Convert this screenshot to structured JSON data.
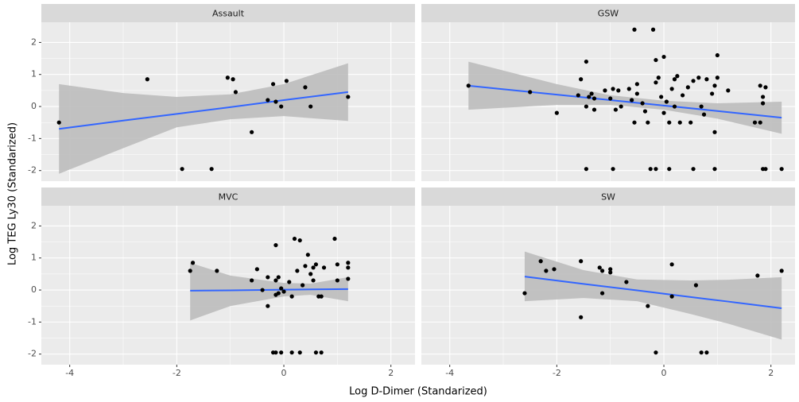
{
  "xlabel": "Log D-Dimer (Standarized)",
  "ylabel": "Log TEG Ly30 (Standarized)",
  "chart_data": [
    {
      "type": "scatter",
      "title": "Assault",
      "xlim": [
        -4.53,
        2.45
      ],
      "ylim": [
        -2.33,
        2.63
      ],
      "xticks": [
        -4,
        -2,
        0,
        2
      ],
      "yticks": [
        -2,
        -1,
        0,
        1,
        2
      ],
      "xminor": [
        -3,
        -1,
        1
      ],
      "yminor": [
        -1.5,
        -0.5,
        0.5,
        1.5
      ],
      "color": "#000000",
      "line_color": "#3366ff",
      "band_color": "#bdbdbd",
      "x": [
        -4.2,
        -2.55,
        -1.9,
        -1.35,
        -1.05,
        -0.95,
        -0.9,
        -0.6,
        -0.3,
        -0.2,
        -0.15,
        -0.05,
        0.05,
        0.4,
        0.5,
        1.2
      ],
      "y": [
        -0.5,
        0.85,
        -1.95,
        -1.95,
        0.9,
        0.85,
        0.45,
        -0.8,
        0.2,
        0.7,
        0.15,
        0,
        0.8,
        0.6,
        0,
        0.3
      ],
      "fit": {
        "x": [
          -4.2,
          -3,
          -2,
          -1,
          0,
          1.2
        ],
        "y": [
          -0.7,
          -0.44,
          -0.23,
          -0.02,
          0.2,
          0.45
        ],
        "lower": [
          -2.1,
          -1.3,
          -0.65,
          -0.4,
          -0.3,
          -0.45
        ],
        "upper": [
          0.7,
          0.42,
          0.3,
          0.38,
          0.7,
          1.35
        ]
      }
    },
    {
      "type": "scatter",
      "title": "GSW",
      "xlim": [
        -4.53,
        2.45
      ],
      "ylim": [
        -2.33,
        2.63
      ],
      "xticks": [
        -4,
        -2,
        0,
        2
      ],
      "yticks": [
        -2,
        -1,
        0,
        1,
        2
      ],
      "xminor": [
        -3,
        -1,
        1
      ],
      "yminor": [
        -1.5,
        -0.5,
        0.5,
        1.5
      ],
      "color": "#000000",
      "line_color": "#3366ff",
      "band_color": "#bdbdbd",
      "x": [
        -3.65,
        -2.5,
        -2.0,
        -1.45,
        -1.55,
        -1.6,
        -1.4,
        -1.35,
        -1.3,
        -1.45,
        -1.3,
        -1.45,
        -1.1,
        -1.0,
        -0.95,
        -0.9,
        -0.95,
        -0.85,
        -0.8,
        -0.65,
        -0.6,
        -0.55,
        -0.55,
        -0.5,
        -0.5,
        -0.4,
        -0.35,
        -0.3,
        -0.25,
        -0.2,
        -0.15,
        -0.15,
        -0.1,
        -0.05,
        -0.15,
        0,
        0,
        0.05,
        0.1,
        0.15,
        0.2,
        0.25,
        0.2,
        0.3,
        0.35,
        0.45,
        0.5,
        0.55,
        0.65,
        0.7,
        0.75,
        0.8,
        0.9,
        0.95,
        0.95,
        1.0,
        1.0,
        0.95,
        0.1,
        0.55,
        1.2,
        1.7,
        1.8,
        1.85,
        1.85,
        1.8,
        1.9,
        1.85,
        1.9,
        2.2
      ],
      "y": [
        0.65,
        0.45,
        -0.2,
        1.4,
        0.85,
        0.35,
        0.3,
        0.4,
        0.25,
        0,
        -0.1,
        -1.95,
        0.5,
        0.25,
        0.55,
        -0.1,
        -1.95,
        0.5,
        0,
        0.55,
        0.2,
        -0.5,
        2.4,
        0.4,
        0.7,
        0.1,
        -0.15,
        -0.5,
        -1.95,
        2.4,
        1.45,
        0.75,
        0.9,
        0.3,
        -1.95,
        1.55,
        -0.2,
        0.15,
        -0.5,
        0.55,
        0.85,
        0.95,
        0,
        -0.5,
        0.35,
        0.6,
        -0.5,
        0.8,
        0.9,
        0,
        -0.25,
        0.85,
        0.4,
        -0.8,
        0.65,
        1.6,
        0.9,
        -1.95,
        -1.95,
        -1.95,
        0.5,
        -0.5,
        0.65,
        0.1,
        0.3,
        -0.5,
        0.6,
        -1.95,
        -1.95,
        -1.95
      ],
      "fit": {
        "x": [
          -3.65,
          -2,
          -1,
          0,
          1,
          2.2
        ],
        "y": [
          0.65,
          0.37,
          0.2,
          0.03,
          -0.14,
          -0.35
        ],
        "lower": [
          -0.1,
          0.05,
          0.05,
          -0.1,
          -0.38,
          -0.85
        ],
        "upper": [
          1.4,
          0.7,
          0.35,
          0.18,
          0.1,
          0.15
        ]
      }
    },
    {
      "type": "scatter",
      "title": "MVC",
      "xlim": [
        -4.53,
        2.45
      ],
      "ylim": [
        -2.33,
        2.63
      ],
      "xticks": [
        -4,
        -2,
        0,
        2
      ],
      "yticks": [
        -2,
        -1,
        0,
        1,
        2
      ],
      "xminor": [
        -3,
        -1,
        1
      ],
      "yminor": [
        -1.5,
        -0.5,
        0.5,
        1.5
      ],
      "color": "#000000",
      "line_color": "#3366ff",
      "band_color": "#bdbdbd",
      "x": [
        -1.75,
        -1.7,
        -1.25,
        -0.6,
        -0.5,
        -0.4,
        -0.3,
        -0.3,
        -0.15,
        -0.15,
        -0.1,
        -0.1,
        -0.15,
        -0.05,
        0.1,
        0.15,
        0.2,
        0.25,
        0.3,
        0.35,
        0.4,
        0.45,
        0.5,
        0.55,
        0.55,
        0.6,
        0.65,
        0.7,
        0.75,
        0.95,
        1.0,
        1.0,
        1.2,
        1.2,
        1.2,
        -0.2,
        -0.15,
        -0.05,
        0.15,
        0.3,
        0.6,
        0.7,
        0.0
      ],
      "y": [
        0.6,
        0.85,
        0.6,
        0.3,
        0.65,
        0,
        -0.5,
        0.4,
        0.3,
        1.4,
        0.4,
        -0.1,
        -0.15,
        0.05,
        0.25,
        -0.2,
        1.6,
        0.6,
        1.55,
        0.15,
        0.75,
        1.1,
        0.5,
        0.7,
        0.3,
        0.8,
        -0.2,
        -0.2,
        0.7,
        1.6,
        0.8,
        0.3,
        0.85,
        0.7,
        0.35,
        -1.95,
        -1.95,
        -1.95,
        -1.95,
        -1.95,
        -1.95,
        -1.95,
        -0.05
      ],
      "fit": {
        "x": [
          -1.75,
          -1,
          0,
          0.5,
          1.2
        ],
        "y": [
          -0.02,
          -0.01,
          0.01,
          0.02,
          0.03
        ],
        "lower": [
          -0.95,
          -0.5,
          -0.2,
          -0.15,
          -0.35
        ],
        "upper": [
          0.85,
          0.45,
          0.22,
          0.2,
          0.4
        ]
      }
    },
    {
      "type": "scatter",
      "title": "SW",
      "xlim": [
        -4.53,
        2.45
      ],
      "ylim": [
        -2.33,
        2.63
      ],
      "xticks": [
        -4,
        -2,
        0,
        2
      ],
      "yticks": [
        -2,
        -1,
        0,
        1,
        2
      ],
      "xminor": [
        -3,
        -1,
        1
      ],
      "yminor": [
        -1.5,
        -0.5,
        0.5,
        1.5
      ],
      "color": "#000000",
      "line_color": "#3366ff",
      "band_color": "#bdbdbd",
      "x": [
        -2.6,
        -2.3,
        -2.2,
        -2.05,
        -1.55,
        -1.55,
        -1.2,
        -1.15,
        -1.0,
        -1.0,
        -1.15,
        -0.7,
        -0.3,
        -0.15,
        0.15,
        0.15,
        0.6,
        0.7,
        0.8,
        1.75,
        2.2
      ],
      "y": [
        -0.1,
        0.9,
        0.6,
        0.65,
        0.9,
        -0.85,
        0.7,
        0.6,
        0.65,
        0.55,
        -0.1,
        0.25,
        -0.5,
        -1.95,
        0.8,
        -0.2,
        0.15,
        -1.95,
        -1.95,
        0.45,
        0.6
      ],
      "fit": {
        "x": [
          -2.6,
          -1.5,
          -0.5,
          0.5,
          1.2,
          2.2
        ],
        "y": [
          0.42,
          0.19,
          -0.01,
          -0.22,
          -0.36,
          -0.57
        ],
        "lower": [
          -0.35,
          -0.25,
          -0.35,
          -0.75,
          -1.05,
          -1.55
        ],
        "upper": [
          1.2,
          0.62,
          0.33,
          0.3,
          0.32,
          0.4
        ]
      }
    }
  ]
}
